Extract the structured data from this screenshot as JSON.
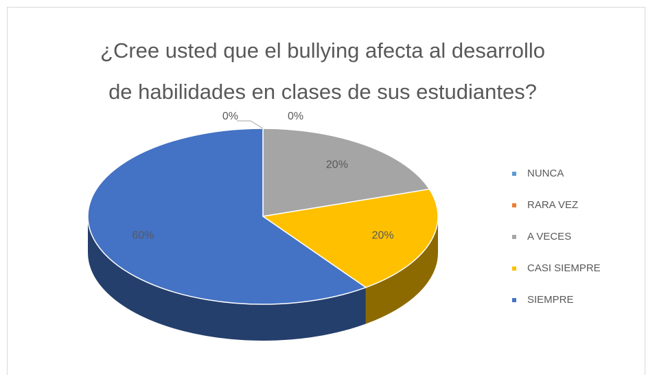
{
  "chart_data": {
    "type": "pie3d",
    "title": [
      "¿Cree usted que el bullying afecta al desarrollo",
      "de habilidades en clases de sus estudiantes?"
    ],
    "categories": [
      "NUNCA",
      "RARA VEZ",
      "A VECES",
      "CASI SIEMPRE",
      "SIEMPRE"
    ],
    "values": [
      0,
      0,
      20,
      20,
      60
    ],
    "value_labels": [
      "0%",
      "0%",
      "20%",
      "20%",
      "60%"
    ],
    "colors": [
      "#5b9bd5",
      "#ed7d31",
      "#a5a5a5",
      "#ffc000",
      "#4472c4"
    ],
    "legend": "right"
  }
}
